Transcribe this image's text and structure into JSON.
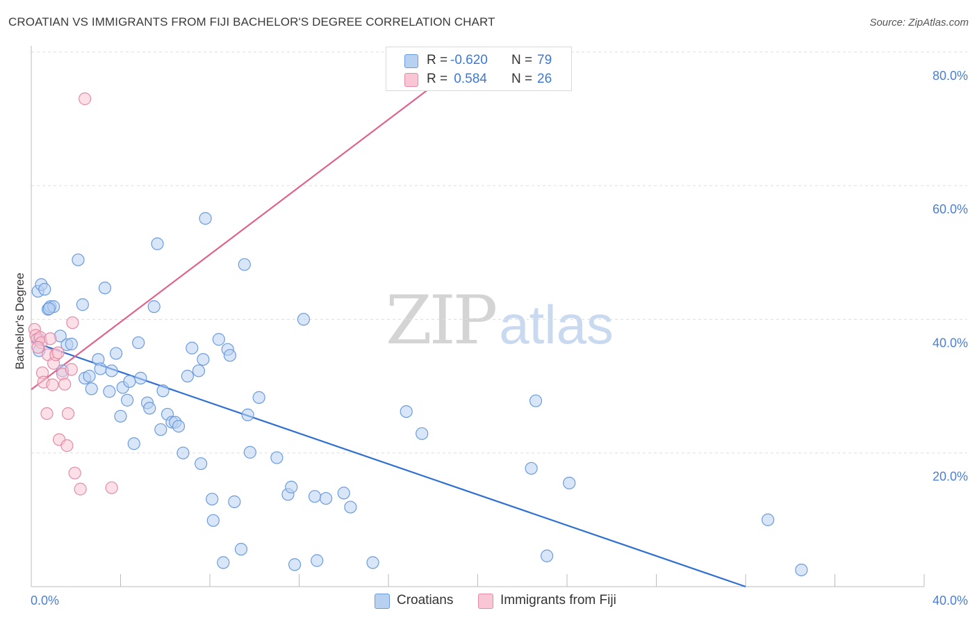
{
  "header": {
    "title": "CROATIAN VS IMMIGRANTS FROM FIJI BACHELOR'S DEGREE CORRELATION CHART",
    "source": "Source: ZipAtlas.com"
  },
  "watermark": {
    "part1": "ZIP",
    "part2": "atlas"
  },
  "colors": {
    "blue_fill": "#b9d1f1",
    "blue_stroke": "#6a9be0",
    "blue_line": "#2f6fd1",
    "pink_fill": "#f8c6d4",
    "pink_stroke": "#e58aa7",
    "pink_line": "#e0628c",
    "tick_text": "#4a7fd4",
    "grid": "#dddddd"
  },
  "legend_top": {
    "rows": [
      {
        "r_label": "R =",
        "r_value": "-0.620",
        "n_label": "N =",
        "n_value": "79"
      },
      {
        "r_label": "R =",
        "r_value": " 0.584",
        "n_label": "N =",
        "n_value": "26"
      }
    ]
  },
  "legend_bottom": {
    "items": [
      {
        "label": "Croatians"
      },
      {
        "label": "Immigrants from Fiji"
      }
    ]
  },
  "chart_data": {
    "type": "scatter",
    "title": "CROATIAN VS IMMIGRANTS FROM FIJI BACHELOR'S DEGREE CORRELATION CHART",
    "xlabel": "",
    "ylabel": "Bachelor's Degree",
    "xlim": [
      0,
      40
    ],
    "ylim": [
      0,
      80.5
    ],
    "x_ticks": [
      0,
      4,
      8,
      12,
      16,
      20,
      24,
      28,
      32,
      36,
      40
    ],
    "x_tick_labels": [
      {
        "value": 0,
        "label": "0.0%"
      },
      {
        "value": 40,
        "label": "40.0%"
      }
    ],
    "y_gridlines": [
      20,
      40,
      60,
      80
    ],
    "y_tick_labels": [
      {
        "value": 20,
        "label": "20.0%"
      },
      {
        "value": 40,
        "label": "40.0%"
      },
      {
        "value": 60,
        "label": "60.0%"
      },
      {
        "value": 80,
        "label": "80.0%"
      }
    ],
    "legend_position": "top-center",
    "series": [
      {
        "name": "Croatians",
        "color": "#6a9be0",
        "r": -0.62,
        "n": 79,
        "trendline": {
          "x": [
            0,
            32.0
          ],
          "y": [
            36.7,
            0.0
          ]
        },
        "points": [
          [
            0.3,
            44.2
          ],
          [
            0.45,
            45.2
          ],
          [
            0.6,
            44.5
          ],
          [
            0.75,
            41.5
          ],
          [
            0.85,
            41.9
          ],
          [
            1.0,
            41.9
          ],
          [
            0.35,
            37.0
          ],
          [
            0.35,
            35.3
          ],
          [
            1.3,
            37.5
          ],
          [
            1.6,
            36.2
          ],
          [
            1.8,
            36.3
          ],
          [
            1.4,
            32.3
          ],
          [
            2.1,
            48.9
          ],
          [
            2.3,
            42.2
          ],
          [
            2.4,
            31.2
          ],
          [
            2.6,
            31.5
          ],
          [
            2.7,
            29.6
          ],
          [
            3.0,
            34.0
          ],
          [
            3.1,
            32.6
          ],
          [
            3.3,
            44.7
          ],
          [
            3.5,
            29.2
          ],
          [
            3.6,
            32.3
          ],
          [
            3.8,
            34.9
          ],
          [
            4.0,
            25.5
          ],
          [
            4.1,
            29.8
          ],
          [
            4.3,
            27.9
          ],
          [
            4.4,
            30.7
          ],
          [
            4.6,
            21.4
          ],
          [
            4.8,
            36.5
          ],
          [
            4.9,
            31.2
          ],
          [
            5.2,
            27.5
          ],
          [
            5.3,
            26.7
          ],
          [
            5.5,
            41.9
          ],
          [
            5.65,
            51.3
          ],
          [
            5.8,
            23.5
          ],
          [
            5.9,
            29.3
          ],
          [
            6.1,
            25.8
          ],
          [
            6.3,
            24.6
          ],
          [
            6.45,
            24.6
          ],
          [
            6.6,
            24.0
          ],
          [
            6.8,
            20.0
          ],
          [
            7.0,
            31.5
          ],
          [
            7.2,
            35.7
          ],
          [
            7.5,
            32.3
          ],
          [
            7.6,
            18.4
          ],
          [
            7.7,
            34.0
          ],
          [
            7.8,
            55.1
          ],
          [
            8.1,
            13.1
          ],
          [
            8.15,
            9.9
          ],
          [
            8.4,
            37.0
          ],
          [
            8.6,
            3.6
          ],
          [
            8.8,
            35.5
          ],
          [
            8.9,
            34.6
          ],
          [
            9.1,
            12.7
          ],
          [
            9.4,
            5.6
          ],
          [
            9.55,
            48.2
          ],
          [
            9.7,
            25.7
          ],
          [
            9.8,
            20.1
          ],
          [
            10.2,
            28.3
          ],
          [
            11.0,
            19.3
          ],
          [
            11.5,
            13.8
          ],
          [
            11.65,
            14.9
          ],
          [
            11.8,
            3.3
          ],
          [
            12.2,
            40.0
          ],
          [
            12.7,
            13.5
          ],
          [
            12.8,
            3.9
          ],
          [
            13.2,
            13.2
          ],
          [
            14.0,
            14.0
          ],
          [
            14.3,
            11.9
          ],
          [
            15.3,
            3.6
          ],
          [
            16.8,
            26.2
          ],
          [
            17.5,
            22.9
          ],
          [
            22.4,
            17.7
          ],
          [
            22.6,
            27.8
          ],
          [
            23.1,
            4.6
          ],
          [
            24.1,
            15.5
          ],
          [
            33.0,
            10.0
          ],
          [
            34.5,
            2.5
          ],
          [
            0.8,
            41.6
          ]
        ]
      },
      {
        "name": "Immigrants from Fiji",
        "color": "#e58aa7",
        "r": 0.584,
        "n": 26,
        "trendline": {
          "x": [
            0,
            20.2
          ],
          "y": [
            29.5,
            80.5
          ]
        },
        "points": [
          [
            0.15,
            38.5
          ],
          [
            0.2,
            37.6
          ],
          [
            0.25,
            37.0
          ],
          [
            0.4,
            37.3
          ],
          [
            0.45,
            36.5
          ],
          [
            0.5,
            32.0
          ],
          [
            0.55,
            30.6
          ],
          [
            0.7,
            25.9
          ],
          [
            0.75,
            34.7
          ],
          [
            0.85,
            37.1
          ],
          [
            0.95,
            30.2
          ],
          [
            1.0,
            33.4
          ],
          [
            1.1,
            34.7
          ],
          [
            1.2,
            35.0
          ],
          [
            1.25,
            22.0
          ],
          [
            1.4,
            31.8
          ],
          [
            1.5,
            30.3
          ],
          [
            1.6,
            21.1
          ],
          [
            1.65,
            25.9
          ],
          [
            1.8,
            32.5
          ],
          [
            1.85,
            39.5
          ],
          [
            1.95,
            17.0
          ],
          [
            2.2,
            14.6
          ],
          [
            2.4,
            73.0
          ],
          [
            3.6,
            14.8
          ],
          [
            0.3,
            35.8
          ]
        ]
      }
    ]
  }
}
